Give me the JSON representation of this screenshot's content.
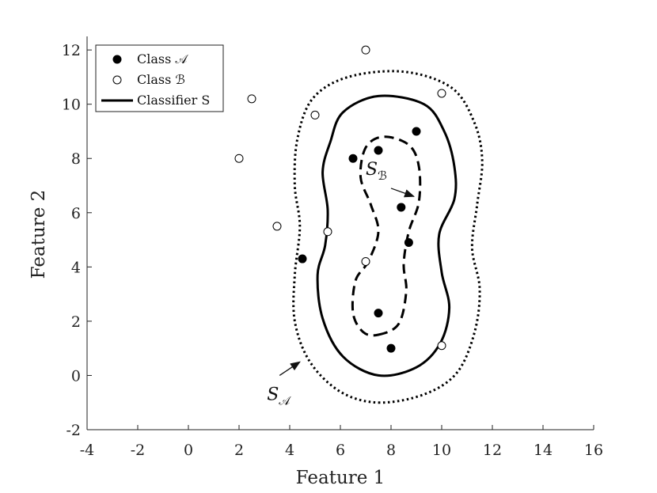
{
  "chart_data": {
    "type": "scatter",
    "xlabel": "Feature 1",
    "ylabel": "Feature 2",
    "xlim": [
      -4,
      16
    ],
    "ylim": [
      -2,
      12.5
    ],
    "xticks": [
      "-4",
      "-2",
      "0",
      "2",
      "4",
      "6",
      "8",
      "10",
      "12",
      "14",
      "16"
    ],
    "yticks": [
      "-2",
      "0",
      "2",
      "4",
      "6",
      "8",
      "10",
      "12"
    ],
    "grid": false,
    "legend_position": "top-left",
    "legend": {
      "class_a": "Class 𝒜",
      "class_b": "Class ℬ",
      "classifier": "Classifier S"
    },
    "series": [
      {
        "name": "Class 𝒜",
        "marker": "filled-circle",
        "points": [
          [
            4.5,
            4.3
          ],
          [
            6.5,
            8.0
          ],
          [
            7.5,
            8.3
          ],
          [
            9.0,
            9.0
          ],
          [
            8.4,
            6.2
          ],
          [
            8.7,
            4.9
          ],
          [
            7.5,
            2.3
          ],
          [
            8.0,
            1.0
          ]
        ]
      },
      {
        "name": "Class ℬ",
        "marker": "open-circle",
        "points": [
          [
            2.0,
            8.0
          ],
          [
            2.5,
            10.2
          ],
          [
            3.5,
            5.5
          ],
          [
            5.0,
            9.6
          ],
          [
            5.5,
            5.3
          ],
          [
            7.0,
            12.0
          ],
          [
            7.0,
            4.2
          ],
          [
            10.0,
            10.4
          ],
          [
            10.0,
            1.1
          ]
        ]
      }
    ],
    "curves": [
      {
        "id": "S",
        "style": "solid",
        "points": [
          [
            7.5,
            0.0
          ],
          [
            9.0,
            0.3
          ],
          [
            9.95,
            1.2
          ],
          [
            10.3,
            2.5
          ],
          [
            10.0,
            3.8
          ],
          [
            9.9,
            5.2
          ],
          [
            10.5,
            6.5
          ],
          [
            10.5,
            7.7
          ],
          [
            10.1,
            9.0
          ],
          [
            9.3,
            10.0
          ],
          [
            7.5,
            10.3
          ],
          [
            6.1,
            9.7
          ],
          [
            5.6,
            8.6
          ],
          [
            5.3,
            7.5
          ],
          [
            5.5,
            6.1
          ],
          [
            5.4,
            4.8
          ],
          [
            5.1,
            3.7
          ],
          [
            5.3,
            2.1
          ],
          [
            6.1,
            0.7
          ]
        ]
      },
      {
        "id": "S_B",
        "style": "dashed",
        "points": [
          [
            7.5,
            1.5
          ],
          [
            8.3,
            1.9
          ],
          [
            8.6,
            3.1
          ],
          [
            8.5,
            4.1
          ],
          [
            8.7,
            5.3
          ],
          [
            9.1,
            6.4
          ],
          [
            9.1,
            7.7
          ],
          [
            8.7,
            8.5
          ],
          [
            7.7,
            8.8
          ],
          [
            7.0,
            8.4
          ],
          [
            6.8,
            7.3
          ],
          [
            7.2,
            6.3
          ],
          [
            7.5,
            5.3
          ],
          [
            7.1,
            4.2
          ],
          [
            6.6,
            3.5
          ],
          [
            6.5,
            2.3
          ],
          [
            6.9,
            1.6
          ]
        ]
      },
      {
        "id": "S_A",
        "style": "dotted",
        "points": [
          [
            7.5,
            -1.0
          ],
          [
            9.3,
            -0.7
          ],
          [
            10.6,
            0.1
          ],
          [
            11.3,
            1.6
          ],
          [
            11.5,
            3.2
          ],
          [
            11.2,
            4.7
          ],
          [
            11.4,
            6.3
          ],
          [
            11.6,
            7.9
          ],
          [
            11.3,
            9.3
          ],
          [
            10.4,
            10.6
          ],
          [
            8.5,
            11.2
          ],
          [
            6.3,
            11.0
          ],
          [
            4.9,
            10.2
          ],
          [
            4.3,
            8.7
          ],
          [
            4.2,
            7.0
          ],
          [
            4.4,
            5.5
          ],
          [
            4.2,
            3.7
          ],
          [
            4.2,
            2.0
          ],
          [
            4.8,
            0.5
          ],
          [
            6.0,
            -0.6
          ]
        ]
      }
    ],
    "annotations": [
      {
        "id": "S_B",
        "label_main": "S",
        "label_sub": "ℬ",
        "text_at": [
          7.0,
          7.4
        ],
        "arrow_from": [
          8.0,
          6.9
        ],
        "arrow_to": [
          8.9,
          6.6
        ]
      },
      {
        "id": "S_A",
        "label_main": "S",
        "label_sub": "𝒜",
        "text_at": [
          3.1,
          -0.9
        ],
        "arrow_from": [
          3.6,
          0.0
        ],
        "arrow_to": [
          4.4,
          0.5
        ]
      }
    ]
  }
}
